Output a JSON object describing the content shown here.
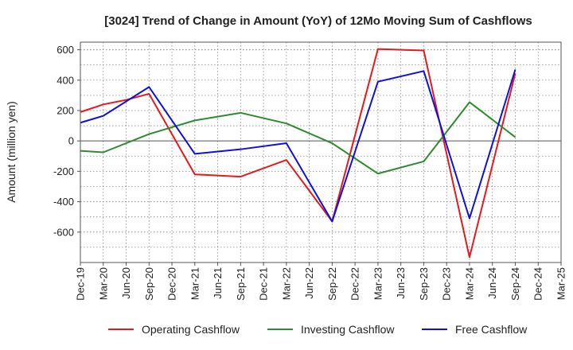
{
  "chart_data": {
    "type": "line",
    "title": "[3024]  Trend of Change in Amount (YoY) of 12Mo Moving Sum of Cashflows",
    "ylabel": "Amount (million yen)",
    "xlabel": "",
    "ylim": [
      -800,
      650
    ],
    "yticks": [
      600,
      400,
      200,
      0,
      -200,
      -400,
      -600
    ],
    "categories": [
      "Dec-19",
      "Mar-20",
      "Jun-20",
      "Sep-20",
      "Dec-20",
      "Mar-21",
      "Jun-21",
      "Sep-21",
      "Dec-21",
      "Mar-22",
      "Jun-22",
      "Sep-22",
      "Dec-22",
      "Mar-23",
      "Jun-23",
      "Sep-23",
      "Dec-23",
      "Mar-24",
      "Jun-24",
      "Sep-24",
      "Dec-24",
      "Mar-25"
    ],
    "grid": true,
    "legend_position": "bottom",
    "series": [
      {
        "name": "Operating Cashflow",
        "color": "#e41a1c",
        "values": [
          190,
          240,
          270,
          310,
          null,
          -220,
          null,
          -235,
          null,
          -125,
          null,
          -530,
          null,
          605,
          null,
          595,
          null,
          -765,
          null,
          445,
          null,
          null
        ]
      },
      {
        "name": "Investing Cashflow",
        "color": "#2e8b2e",
        "values": [
          -65,
          -75,
          null,
          45,
          null,
          135,
          null,
          185,
          null,
          115,
          null,
          -15,
          null,
          -215,
          null,
          -135,
          null,
          255,
          null,
          25,
          null,
          null
        ]
      },
      {
        "name": "Free Cashflow",
        "color": "#1010dd",
        "values": [
          120,
          165,
          null,
          355,
          null,
          -85,
          null,
          -55,
          null,
          -15,
          null,
          -530,
          null,
          390,
          null,
          460,
          null,
          -510,
          null,
          470,
          null,
          null
        ]
      }
    ]
  }
}
